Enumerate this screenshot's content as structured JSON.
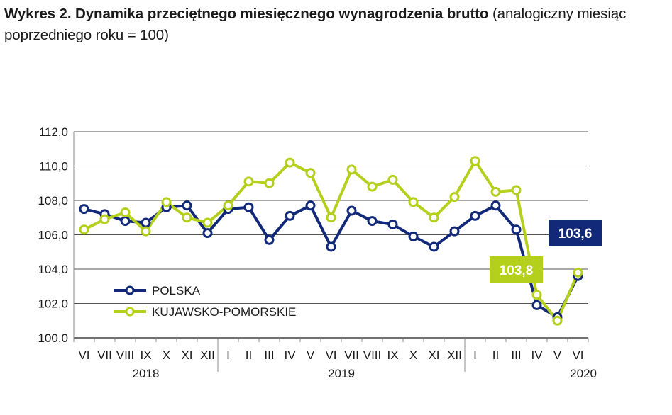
{
  "title": {
    "bold": "Wykres 2. Dynamika przeciętnego miesięcznego wynagrodzenia brutto",
    "normal": " (analogiczny miesiąc poprzedniego roku = 100)"
  },
  "colors": {
    "polska": "#12297a",
    "kujawsko": "#b5cf1d",
    "grid": "#1a1a1a",
    "axis": "#8c8c8c"
  },
  "chart_data": {
    "type": "line",
    "x_categories": [
      "VI",
      "VII",
      "VIII",
      "IX",
      "X",
      "XI",
      "XII",
      "I",
      "II",
      "III",
      "IV",
      "V",
      "VI",
      "VII",
      "VIII",
      "IX",
      "X",
      "XI",
      "XII",
      "I",
      "II",
      "III",
      "IV",
      "V",
      "VI"
    ],
    "year_labels": [
      {
        "label": "2018",
        "start_index": 0,
        "end_index": 6
      },
      {
        "label": "2019",
        "start_index": 7,
        "end_index": 18
      },
      {
        "label": "2020",
        "start_index": 19,
        "end_index": 24
      }
    ],
    "ylim": [
      100,
      112
    ],
    "y_ticks": [
      "100,0",
      "102,0",
      "104,0",
      "106,0",
      "108,0",
      "110,0",
      "112,0"
    ],
    "grid": true,
    "legend_placement": "bottom-left",
    "series": [
      {
        "name": "POLSKA",
        "color": "#12297a",
        "values": [
          107.5,
          107.2,
          106.8,
          106.7,
          107.6,
          107.7,
          106.1,
          107.5,
          107.6,
          105.7,
          107.1,
          107.7,
          105.3,
          107.4,
          106.8,
          106.6,
          105.9,
          105.3,
          106.2,
          107.1,
          107.7,
          106.3,
          101.9,
          101.2,
          103.6
        ]
      },
      {
        "name": "KUJAWSKO-POMORSKIE",
        "color": "#b5cf1d",
        "values": [
          106.3,
          106.9,
          107.3,
          106.2,
          107.9,
          107.0,
          106.7,
          107.7,
          109.1,
          109.0,
          110.2,
          109.6,
          107.0,
          109.8,
          108.8,
          109.2,
          107.9,
          107.0,
          108.2,
          110.3,
          108.5,
          108.6,
          102.5,
          101.0,
          103.8
        ]
      }
    ],
    "annotations": [
      {
        "text": "103,6",
        "series": "POLSKA"
      },
      {
        "text": "103,8",
        "series": "KUJAWSKO-POMORSKIE"
      }
    ]
  }
}
